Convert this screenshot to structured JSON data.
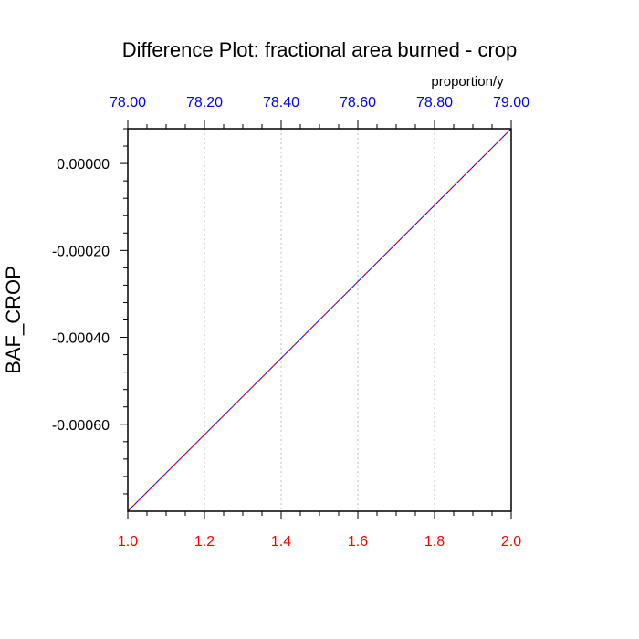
{
  "chart_data": {
    "type": "line",
    "title": "Difference Plot: fractional area burned - crop",
    "units_label": "proportion/y",
    "ylabel": "BAF_CROP",
    "x_bottom": {
      "ticks": [
        1.0,
        1.2,
        1.4,
        1.6,
        1.8,
        2.0
      ],
      "tick_labels": [
        "1.0",
        "1.2",
        "1.4",
        "1.6",
        "1.8",
        "2.0"
      ],
      "range": [
        1.0,
        2.0
      ],
      "color": "#ff0000"
    },
    "x_top": {
      "tick_labels": [
        "78.00",
        "78.20",
        "78.40",
        "78.60",
        "78.80",
        "79.00"
      ],
      "range": [
        78.0,
        79.0
      ],
      "color": "#0000ff"
    },
    "y": {
      "ticks": [
        0.0,
        -0.0002,
        -0.0004,
        -0.0006
      ],
      "tick_labels": [
        "0.00000",
        "-0.00020",
        "-0.00040",
        "-0.00060"
      ],
      "range": [
        -0.0008,
        8e-05
      ]
    },
    "series": [
      {
        "x": [
          1.0,
          2.0
        ],
        "values": [
          -0.0008,
          8e-05
        ],
        "color": "#0000ff",
        "style": "solid"
      },
      {
        "x": [
          1.0,
          2.0
        ],
        "values": [
          -0.0008,
          8e-05
        ],
        "color": "#ff0000",
        "style": "dashed"
      }
    ],
    "grid": "vertical dotted at bottom-axis ticks",
    "grid_color": "#c8c8c8"
  }
}
